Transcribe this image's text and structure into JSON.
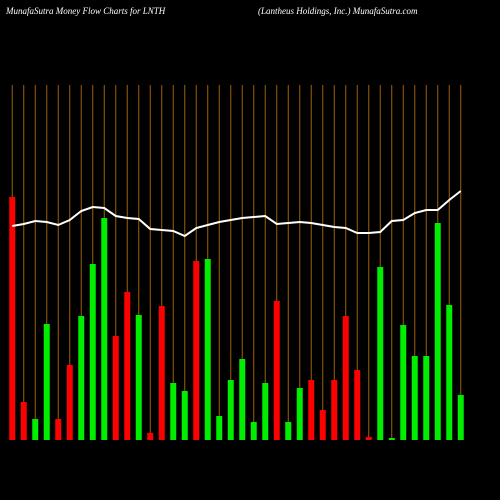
{
  "chart_data": {
    "type": "bar",
    "title": "MunafaSutra  Money Flow  Charts for LNTH",
    "subtitle": "(Lantheus Holdings, Inc.) MunafaSutra.com",
    "categories": [
      null,
      null,
      null,
      null,
      null,
      null,
      null,
      null,
      null,
      null,
      null,
      null,
      null,
      null,
      null,
      null,
      null,
      null,
      null,
      null,
      null,
      null,
      null,
      null,
      null,
      null,
      null,
      null,
      null,
      null,
      null,
      null,
      null,
      null,
      null,
      null,
      null,
      null,
      null,
      null
    ],
    "values": [
      243,
      38,
      21,
      116,
      21,
      75,
      124,
      176,
      222,
      104,
      148,
      125,
      7,
      134,
      57,
      49,
      179,
      181,
      24,
      60,
      81,
      18,
      57,
      139,
      18,
      52,
      60,
      30,
      60,
      124,
      70,
      3,
      173,
      2,
      115,
      84,
      84,
      217,
      135,
      45
    ],
    "bar_colors": [
      "#ff0000",
      "#ff0000",
      "#00ee00",
      "#00ee00",
      "#ff0000",
      "#ff0000",
      "#00ee00",
      "#00ee00",
      "#00ee00",
      "#ff0000",
      "#ff0000",
      "#00ee00",
      "#ff0000",
      "#ff0000",
      "#00ee00",
      "#00ee00",
      "#ff0000",
      "#00ee00",
      "#00ee00",
      "#00ee00",
      "#00ee00",
      "#00ee00",
      "#00ee00",
      "#ff0000",
      "#00ee00",
      "#00ee00",
      "#ff0000",
      "#ff0000",
      "#ff0000",
      "#ff0000",
      "#ff0000",
      "#ff0000",
      "#00ee00",
      "#00ee00",
      "#00ee00",
      "#00ee00",
      "#00ee00",
      "#00ee00",
      "#00ee00",
      "#00ee00"
    ],
    "line": {
      "color": "#ffffff",
      "values": [
        214,
        216,
        219,
        218,
        215,
        220,
        229,
        233,
        232,
        224,
        222,
        221,
        211,
        210,
        209,
        204,
        212,
        215,
        218,
        220,
        222,
        223,
        224,
        216,
        217,
        218,
        217,
        215,
        213,
        212,
        207,
        207,
        208,
        219,
        220,
        227,
        230,
        230,
        240,
        249
      ]
    },
    "grid_color": "#a0600a",
    "ylim": [
      0,
      440
    ]
  }
}
